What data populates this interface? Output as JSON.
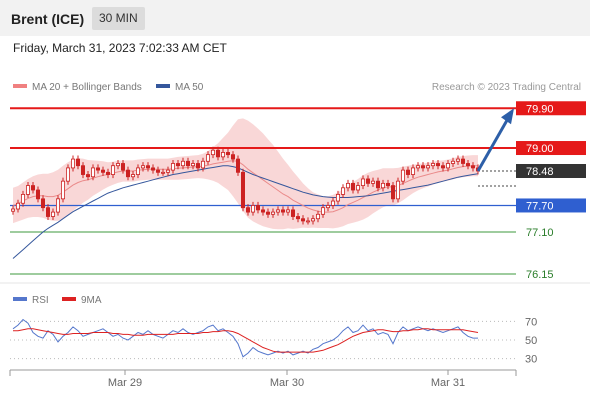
{
  "instrument": "Brent (ICE)",
  "period": "30 MIN",
  "timestamp": "Friday, March 31, 2023 7:02:33 AM CET",
  "colors": {
    "resistance": "#e51919",
    "support_main": "#2f5fd0",
    "support_other": "#3c9a3c",
    "price_tag": "#333333",
    "arrow": "#2d5fa8",
    "bollinger": "#f4b6b6",
    "ma50": "#35579c",
    "ma20": "#ea8a8a",
    "rsi": "#5577cc",
    "rsi_ma": "#dd2222",
    "candle": "#cc2222"
  },
  "chart_data": [
    {
      "type": "candlestick",
      "legend": [
        {
          "label": "MA 20 + Bollinger Bands",
          "color": "#f08080"
        },
        {
          "label": "MA 50",
          "color": "#35579c"
        }
      ],
      "credit": "Research © 2023 Trading Central",
      "ylim": [
        75.9,
        80.2
      ],
      "x_ticks": [
        "Mar 29",
        "Mar 30",
        "Mar 31"
      ],
      "levels": [
        {
          "value": 79.9,
          "label": "79.90",
          "kind": "resistance"
        },
        {
          "value": 79.0,
          "label": "79.00",
          "kind": "resistance"
        },
        {
          "value": 78.48,
          "label": "78.48",
          "kind": "last"
        },
        {
          "value": 77.7,
          "label": "77.70",
          "kind": "support_main"
        },
        {
          "value": 77.1,
          "label": "77.10",
          "kind": "support"
        },
        {
          "value": 76.15,
          "label": "76.15",
          "kind": "support"
        }
      ],
      "closes": [
        77.62,
        77.75,
        77.95,
        78.15,
        78.05,
        77.85,
        77.65,
        77.45,
        77.55,
        77.85,
        78.25,
        78.55,
        78.75,
        78.6,
        78.4,
        78.35,
        78.55,
        78.5,
        78.45,
        78.4,
        78.6,
        78.65,
        78.5,
        78.35,
        78.4,
        78.55,
        78.6,
        78.55,
        78.5,
        78.45,
        78.45,
        78.5,
        78.65,
        78.6,
        78.7,
        78.6,
        78.65,
        78.55,
        78.7,
        78.85,
        78.95,
        78.8,
        78.9,
        78.85,
        78.75,
        78.45,
        77.65,
        77.55,
        77.7,
        77.6,
        77.55,
        77.5,
        77.55,
        77.6,
        77.55,
        77.6,
        77.45,
        77.4,
        77.35,
        77.35,
        77.4,
        77.5,
        77.65,
        77.7,
        77.8,
        77.95,
        78.1,
        78.2,
        78.05,
        78.15,
        78.3,
        78.2,
        78.25,
        78.1,
        78.2,
        78.15,
        77.85,
        78.25,
        78.5,
        78.4,
        78.55,
        78.6,
        78.55,
        78.6,
        78.65,
        78.6,
        78.55,
        78.65,
        78.7,
        78.75,
        78.65,
        78.6,
        78.55,
        78.48
      ],
      "ma20": [
        77.7,
        77.74,
        77.8,
        77.86,
        77.9,
        77.92,
        77.92,
        77.9,
        77.9,
        77.93,
        78.0,
        78.08,
        78.16,
        78.22,
        78.26,
        78.28,
        78.32,
        78.35,
        78.38,
        78.4,
        78.43,
        78.46,
        78.48,
        78.48,
        78.48,
        78.5,
        78.51,
        78.52,
        78.52,
        78.52,
        78.52,
        78.52,
        78.53,
        78.54,
        78.55,
        78.56,
        78.57,
        78.58,
        78.59,
        78.61,
        78.64,
        78.66,
        78.68,
        78.7,
        78.71,
        78.7,
        78.62,
        78.52,
        78.44,
        78.36,
        78.28,
        78.2,
        78.12,
        78.04,
        77.96,
        77.9,
        77.82,
        77.76,
        77.7,
        77.64,
        77.6,
        77.57,
        77.55,
        77.55,
        77.56,
        77.6,
        77.65,
        77.72,
        77.77,
        77.82,
        77.88,
        77.94,
        78.0,
        78.05,
        78.1,
        78.12,
        78.12,
        78.15,
        78.2,
        78.25,
        78.3,
        78.34,
        78.37,
        78.4,
        78.43,
        78.46,
        78.48,
        78.5,
        78.53,
        78.56,
        78.58,
        78.59,
        78.6,
        78.6
      ],
      "bb_width": [
        0.4,
        0.4,
        0.42,
        0.44,
        0.46,
        0.48,
        0.5,
        0.52,
        0.55,
        0.58,
        0.6,
        0.6,
        0.58,
        0.55,
        0.5,
        0.45,
        0.4,
        0.36,
        0.32,
        0.28,
        0.26,
        0.25,
        0.24,
        0.24,
        0.24,
        0.24,
        0.24,
        0.24,
        0.24,
        0.24,
        0.24,
        0.24,
        0.25,
        0.26,
        0.26,
        0.26,
        0.26,
        0.26,
        0.28,
        0.32,
        0.38,
        0.45,
        0.55,
        0.65,
        0.8,
        0.95,
        1.05,
        1.1,
        1.1,
        1.08,
        1.05,
        1.0,
        0.95,
        0.88,
        0.8,
        0.72,
        0.65,
        0.58,
        0.5,
        0.45,
        0.4,
        0.38,
        0.36,
        0.36,
        0.38,
        0.4,
        0.42,
        0.44,
        0.46,
        0.48,
        0.5,
        0.5,
        0.48,
        0.46,
        0.44,
        0.42,
        0.42,
        0.4,
        0.38,
        0.35,
        0.32,
        0.3,
        0.28,
        0.27,
        0.26,
        0.25,
        0.24,
        0.24,
        0.24,
        0.24,
        0.24,
        0.24,
        0.24,
        0.24
      ],
      "ma50": [
        76.5,
        76.6,
        76.7,
        76.8,
        76.9,
        77.0,
        77.1,
        77.18,
        77.25,
        77.32,
        77.4,
        77.48,
        77.56,
        77.62,
        77.68,
        77.74,
        77.8,
        77.86,
        77.92,
        77.98,
        78.02,
        78.06,
        78.1,
        78.13,
        78.16,
        78.19,
        78.22,
        78.25,
        78.28,
        78.31,
        78.34,
        78.37,
        78.4,
        78.42,
        78.44,
        78.46,
        78.48,
        78.5,
        78.52,
        78.54,
        78.56,
        78.58,
        78.6,
        78.6,
        78.58,
        78.55,
        78.5,
        78.45,
        78.4,
        78.36,
        78.32,
        78.28,
        78.24,
        78.2,
        78.16,
        78.12,
        78.08,
        78.04,
        78.0,
        77.97,
        77.94,
        77.92,
        77.9,
        77.89,
        77.88,
        77.88,
        77.88,
        77.88,
        77.89,
        77.9,
        77.91,
        77.92,
        77.94,
        77.96,
        77.98,
        78.0,
        78.02,
        78.04,
        78.06,
        78.08,
        78.1,
        78.12,
        78.14,
        78.16,
        78.19,
        78.22,
        78.25,
        78.28,
        78.31,
        78.34,
        78.36,
        78.38,
        78.4,
        78.42
      ],
      "projection": {
        "from": 78.48,
        "to": 79.9
      }
    },
    {
      "type": "line",
      "legend": [
        {
          "label": "RSI",
          "color": "#5577cc"
        },
        {
          "label": "9MA",
          "color": "#dd2222"
        }
      ],
      "ylim": [
        20,
        80
      ],
      "y_ticks": [
        70,
        50,
        30
      ],
      "rsi": [
        62,
        66,
        72,
        68,
        58,
        54,
        52,
        60,
        56,
        48,
        54,
        58,
        64,
        60,
        54,
        56,
        58,
        60,
        62,
        58,
        54,
        56,
        52,
        50,
        54,
        58,
        56,
        60,
        56,
        54,
        52,
        56,
        60,
        58,
        62,
        58,
        56,
        58,
        60,
        64,
        66,
        60,
        62,
        58,
        54,
        46,
        32,
        36,
        42,
        38,
        36,
        34,
        36,
        38,
        36,
        38,
        34,
        36,
        38,
        36,
        40,
        42,
        46,
        48,
        50,
        54,
        60,
        64,
        58,
        60,
        66,
        60,
        62,
        56,
        58,
        56,
        46,
        58,
        64,
        60,
        62,
        64,
        62,
        60,
        62,
        60,
        58,
        60,
        62,
        64,
        58,
        54,
        52,
        52
      ],
      "ma": [
        60,
        60,
        61,
        62,
        62,
        61,
        60,
        59,
        58,
        57,
        56,
        56,
        57,
        57,
        57,
        57,
        58,
        58,
        58,
        58,
        57,
        57,
        56,
        56,
        55,
        55,
        55,
        56,
        56,
        56,
        56,
        56,
        56,
        57,
        57,
        57,
        57,
        57,
        58,
        58,
        59,
        59,
        60,
        60,
        59,
        57,
        54,
        51,
        48,
        45,
        42,
        40,
        38,
        37,
        37,
        37,
        37,
        37,
        37,
        37,
        37,
        38,
        39,
        41,
        43,
        45,
        48,
        51,
        54,
        56,
        58,
        59,
        60,
        61,
        61,
        60,
        59,
        59,
        60,
        60,
        61,
        61,
        62,
        62,
        61,
        61,
        61,
        61,
        61,
        61,
        61,
        60,
        59,
        58
      ]
    }
  ]
}
